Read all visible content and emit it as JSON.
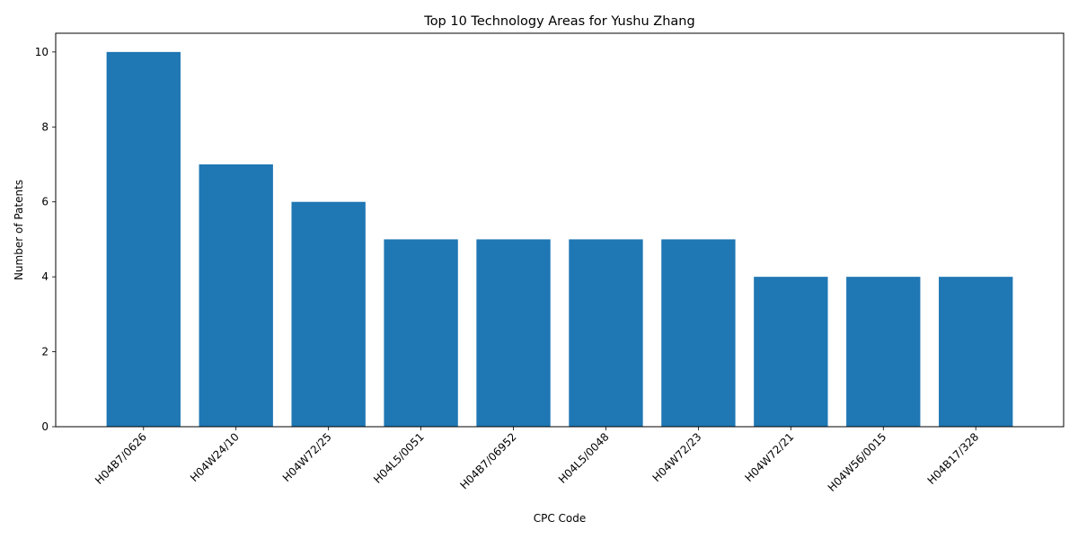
{
  "chart_data": {
    "type": "bar",
    "title": "Top 10 Technology Areas for Yushu Zhang",
    "xlabel": "CPC Code",
    "ylabel": "Number of Patents",
    "categories": [
      "H04B7/0626",
      "H04W24/10",
      "H04W72/25",
      "H04L5/0051",
      "H04B7/06952",
      "H04L5/0048",
      "H04W72/23",
      "H04W72/21",
      "H04W56/0015",
      "H04B17/328"
    ],
    "values": [
      10,
      7,
      6,
      5,
      5,
      5,
      5,
      4,
      4,
      4
    ],
    "ylim": [
      0,
      10.5
    ],
    "yticks": [
      0,
      2,
      4,
      6,
      8,
      10
    ],
    "bar_color": "#1f77b4",
    "grid": false,
    "legend": "none"
  }
}
